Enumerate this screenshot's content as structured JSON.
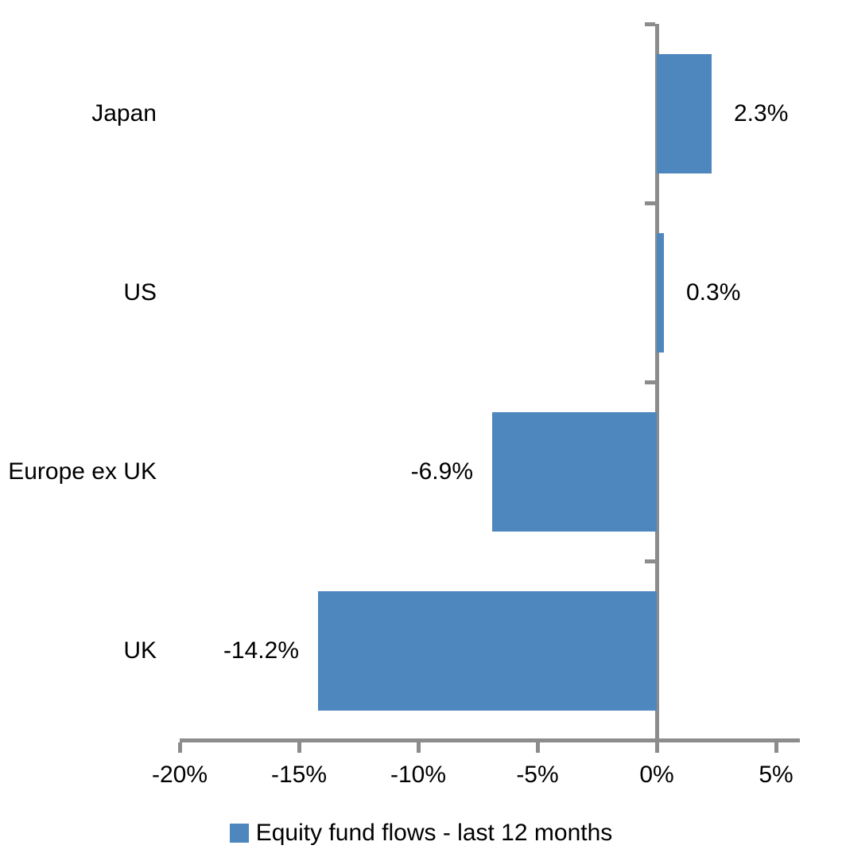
{
  "chart_data": {
    "type": "bar",
    "orientation": "horizontal",
    "title": "",
    "xlabel": "",
    "ylabel": "",
    "categories": [
      "Japan",
      "US",
      "Europe ex UK",
      "UK"
    ],
    "values": [
      2.3,
      0.3,
      -6.9,
      -14.2
    ],
    "value_labels": [
      "2.3%",
      "0.3%",
      "-6.9%",
      "-14.2%"
    ],
    "series": [
      {
        "name": "Equity fund flows - last 12 months",
        "values": [
          2.3,
          0.3,
          -6.9,
          -14.2
        ]
      }
    ],
    "xlim": [
      -20,
      6
    ],
    "x_ticks": [
      -20,
      -15,
      -10,
      -5,
      0,
      5
    ],
    "x_tick_labels": [
      "-20%",
      "-15%",
      "-10%",
      "-5%",
      "0%",
      "5%"
    ],
    "grid": false,
    "legend_position": "bottom",
    "colors": {
      "bar": "#4E87BE",
      "axis": "#8C8C8C",
      "text": "#000000",
      "background": "#FFFFFF"
    }
  },
  "legend": {
    "label": "Equity fund flows - last 12 months"
  }
}
